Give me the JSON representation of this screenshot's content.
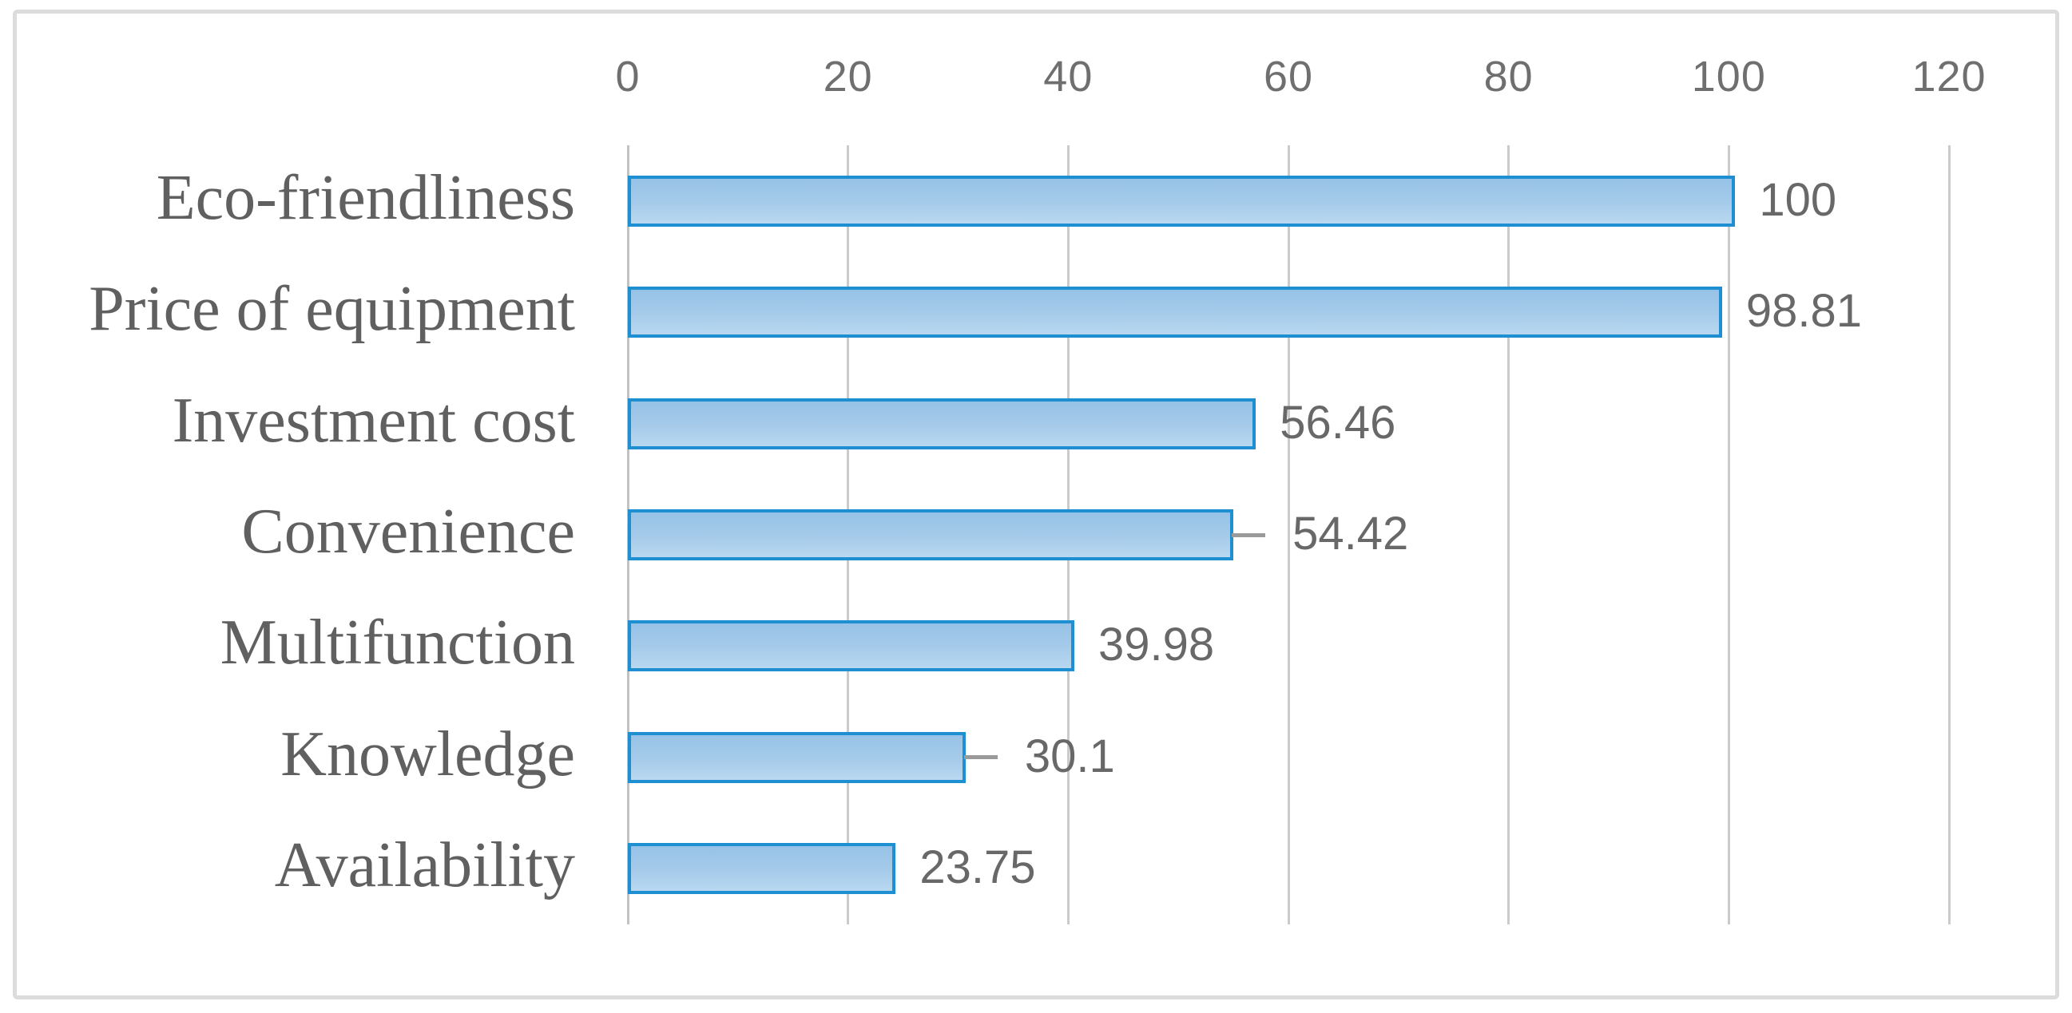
{
  "chart_data": {
    "type": "bar",
    "orientation": "horizontal",
    "title": "",
    "xlabel": "",
    "ylabel": "",
    "categories": [
      "Eco-friendliness",
      "Price of equipment",
      "Investment cost",
      "Convenience",
      "Multifunction",
      "Knowledge",
      "Availability"
    ],
    "values": [
      100,
      98.81,
      56.46,
      54.42,
      39.98,
      30.1,
      23.75
    ],
    "value_labels": [
      "100",
      "98.81",
      "56.46",
      "54.42",
      "39.98",
      "30.1",
      "23.75"
    ],
    "leader_lines": [
      false,
      false,
      false,
      true,
      false,
      true,
      false
    ],
    "x_ticks": [
      0,
      20,
      40,
      60,
      80,
      100,
      120
    ],
    "x_tick_labels": [
      "0",
      "20",
      "40",
      "60",
      "80",
      "100",
      "120"
    ],
    "xlim": [
      0,
      120
    ],
    "axis_position": "top",
    "grid": "vertical",
    "legend": null,
    "colors": {
      "bar_fill_top": "#96C2E7",
      "bar_fill_mid": "#A6CBEA",
      "bar_fill_bottom": "#B9D8F0",
      "bar_border": "#1E8FD0",
      "gridline": "#CBCBCB",
      "category_text": "#606060",
      "value_text": "#686868",
      "tick_text": "#6F6F6F",
      "frame_border": "#DCDCDC",
      "leader": "#9A9A9A",
      "background": "#FFFFFF"
    }
  }
}
